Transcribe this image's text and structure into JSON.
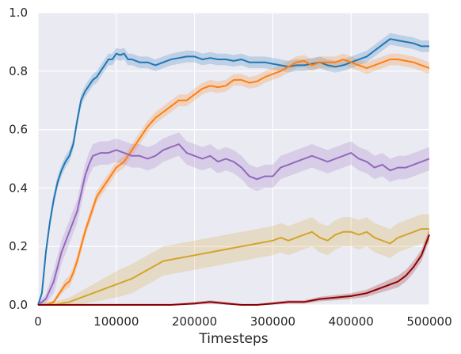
{
  "chart_data": {
    "type": "line",
    "title": "",
    "xlabel": "Timesteps",
    "ylabel": "",
    "xlim": [
      0,
      500000
    ],
    "ylim": [
      0,
      1.0
    ],
    "grid": true,
    "x_ticks": [
      0,
      100000,
      200000,
      300000,
      400000,
      500000
    ],
    "x_tick_labels": [
      "0",
      "100000",
      "200000",
      "300000",
      "400000",
      "500000"
    ],
    "y_ticks": [
      0.0,
      0.2,
      0.4,
      0.6,
      0.8,
      1.0
    ],
    "y_tick_labels": [
      "0.0",
      "0.2",
      "0.4",
      "0.6",
      "0.8",
      "1.0"
    ],
    "background_color": "#eaeaf2",
    "grid_color": "#ffffff",
    "series": [
      {
        "color": "#1f77b4",
        "x": [
          0,
          5000,
          10000,
          15000,
          20000,
          25000,
          30000,
          35000,
          40000,
          45000,
          50000,
          55000,
          60000,
          65000,
          70000,
          75000,
          80000,
          85000,
          90000,
          95000,
          100000,
          105000,
          110000,
          115000,
          120000,
          130000,
          140000,
          150000,
          160000,
          170000,
          180000,
          190000,
          200000,
          210000,
          220000,
          230000,
          240000,
          250000,
          260000,
          270000,
          280000,
          290000,
          300000,
          310000,
          320000,
          330000,
          340000,
          350000,
          360000,
          370000,
          380000,
          390000,
          400000,
          410000,
          420000,
          430000,
          440000,
          450000,
          460000,
          470000,
          480000,
          490000,
          500000
        ],
        "y": [
          0.0,
          0.04,
          0.18,
          0.28,
          0.36,
          0.42,
          0.46,
          0.49,
          0.51,
          0.55,
          0.63,
          0.7,
          0.73,
          0.75,
          0.77,
          0.78,
          0.8,
          0.82,
          0.84,
          0.84,
          0.86,
          0.855,
          0.86,
          0.84,
          0.84,
          0.83,
          0.83,
          0.82,
          0.83,
          0.84,
          0.845,
          0.85,
          0.85,
          0.84,
          0.845,
          0.84,
          0.84,
          0.835,
          0.84,
          0.83,
          0.83,
          0.83,
          0.825,
          0.82,
          0.815,
          0.82,
          0.82,
          0.825,
          0.83,
          0.82,
          0.815,
          0.82,
          0.83,
          0.84,
          0.85,
          0.87,
          0.89,
          0.91,
          0.905,
          0.9,
          0.895,
          0.885,
          0.885
        ],
        "band": 0.02
      },
      {
        "color": "#ff7f0e",
        "x": [
          0,
          10000,
          20000,
          25000,
          30000,
          35000,
          40000,
          45000,
          50000,
          55000,
          60000,
          65000,
          70000,
          75000,
          80000,
          90000,
          100000,
          110000,
          120000,
          130000,
          140000,
          150000,
          160000,
          170000,
          180000,
          190000,
          200000,
          210000,
          220000,
          230000,
          240000,
          250000,
          260000,
          270000,
          280000,
          290000,
          300000,
          310000,
          320000,
          330000,
          340000,
          350000,
          360000,
          370000,
          380000,
          390000,
          400000,
          410000,
          420000,
          430000,
          440000,
          450000,
          460000,
          470000,
          480000,
          490000,
          500000
        ],
        "y": [
          0.0,
          0.0,
          0.01,
          0.03,
          0.05,
          0.07,
          0.08,
          0.11,
          0.15,
          0.2,
          0.25,
          0.29,
          0.33,
          0.37,
          0.39,
          0.43,
          0.47,
          0.49,
          0.53,
          0.57,
          0.61,
          0.64,
          0.66,
          0.68,
          0.7,
          0.7,
          0.72,
          0.74,
          0.75,
          0.745,
          0.75,
          0.77,
          0.77,
          0.76,
          0.765,
          0.78,
          0.79,
          0.8,
          0.815,
          0.83,
          0.835,
          0.82,
          0.83,
          0.83,
          0.83,
          0.84,
          0.83,
          0.82,
          0.81,
          0.82,
          0.83,
          0.84,
          0.84,
          0.835,
          0.83,
          0.82,
          0.81
        ],
        "band": 0.02
      },
      {
        "color": "#9467bd",
        "x": [
          0,
          10000,
          20000,
          30000,
          40000,
          50000,
          55000,
          60000,
          65000,
          70000,
          80000,
          90000,
          100000,
          110000,
          120000,
          130000,
          140000,
          150000,
          160000,
          170000,
          180000,
          190000,
          200000,
          210000,
          220000,
          230000,
          240000,
          250000,
          260000,
          270000,
          280000,
          290000,
          300000,
          310000,
          320000,
          330000,
          340000,
          350000,
          360000,
          370000,
          380000,
          390000,
          400000,
          410000,
          420000,
          430000,
          440000,
          450000,
          460000,
          470000,
          480000,
          490000,
          500000
        ],
        "y": [
          0.0,
          0.02,
          0.08,
          0.18,
          0.25,
          0.32,
          0.38,
          0.44,
          0.48,
          0.51,
          0.52,
          0.52,
          0.53,
          0.52,
          0.51,
          0.51,
          0.5,
          0.51,
          0.53,
          0.54,
          0.55,
          0.52,
          0.51,
          0.5,
          0.51,
          0.49,
          0.5,
          0.49,
          0.47,
          0.44,
          0.43,
          0.44,
          0.44,
          0.47,
          0.48,
          0.49,
          0.5,
          0.51,
          0.5,
          0.49,
          0.5,
          0.51,
          0.52,
          0.5,
          0.49,
          0.47,
          0.48,
          0.46,
          0.47,
          0.47,
          0.48,
          0.49,
          0.5
        ],
        "band": 0.04
      },
      {
        "color": "#d4a42a",
        "x": [
          0,
          20000,
          40000,
          60000,
          80000,
          100000,
          120000,
          140000,
          160000,
          180000,
          200000,
          220000,
          240000,
          260000,
          280000,
          300000,
          310000,
          320000,
          330000,
          340000,
          350000,
          360000,
          370000,
          380000,
          390000,
          400000,
          410000,
          420000,
          430000,
          440000,
          450000,
          460000,
          470000,
          480000,
          490000,
          500000
        ],
        "y": [
          0.0,
          0.0,
          0.01,
          0.03,
          0.05,
          0.07,
          0.09,
          0.12,
          0.15,
          0.16,
          0.17,
          0.18,
          0.19,
          0.2,
          0.21,
          0.22,
          0.23,
          0.22,
          0.23,
          0.24,
          0.25,
          0.23,
          0.22,
          0.24,
          0.25,
          0.25,
          0.24,
          0.25,
          0.23,
          0.22,
          0.21,
          0.23,
          0.24,
          0.25,
          0.26,
          0.26
        ],
        "band": 0.05
      },
      {
        "color": "#8b0000",
        "x": [
          0,
          50000,
          100000,
          150000,
          170000,
          200000,
          220000,
          240000,
          260000,
          280000,
          300000,
          320000,
          340000,
          360000,
          380000,
          400000,
          420000,
          430000,
          440000,
          450000,
          460000,
          470000,
          480000,
          490000,
          500000
        ],
        "y": [
          0.0,
          0.0,
          0.0,
          0.0,
          0.0,
          0.005,
          0.01,
          0.005,
          0.0,
          0.0,
          0.005,
          0.01,
          0.01,
          0.02,
          0.025,
          0.03,
          0.04,
          0.05,
          0.06,
          0.07,
          0.08,
          0.1,
          0.13,
          0.17,
          0.24
        ],
        "band": 0.02
      }
    ]
  }
}
